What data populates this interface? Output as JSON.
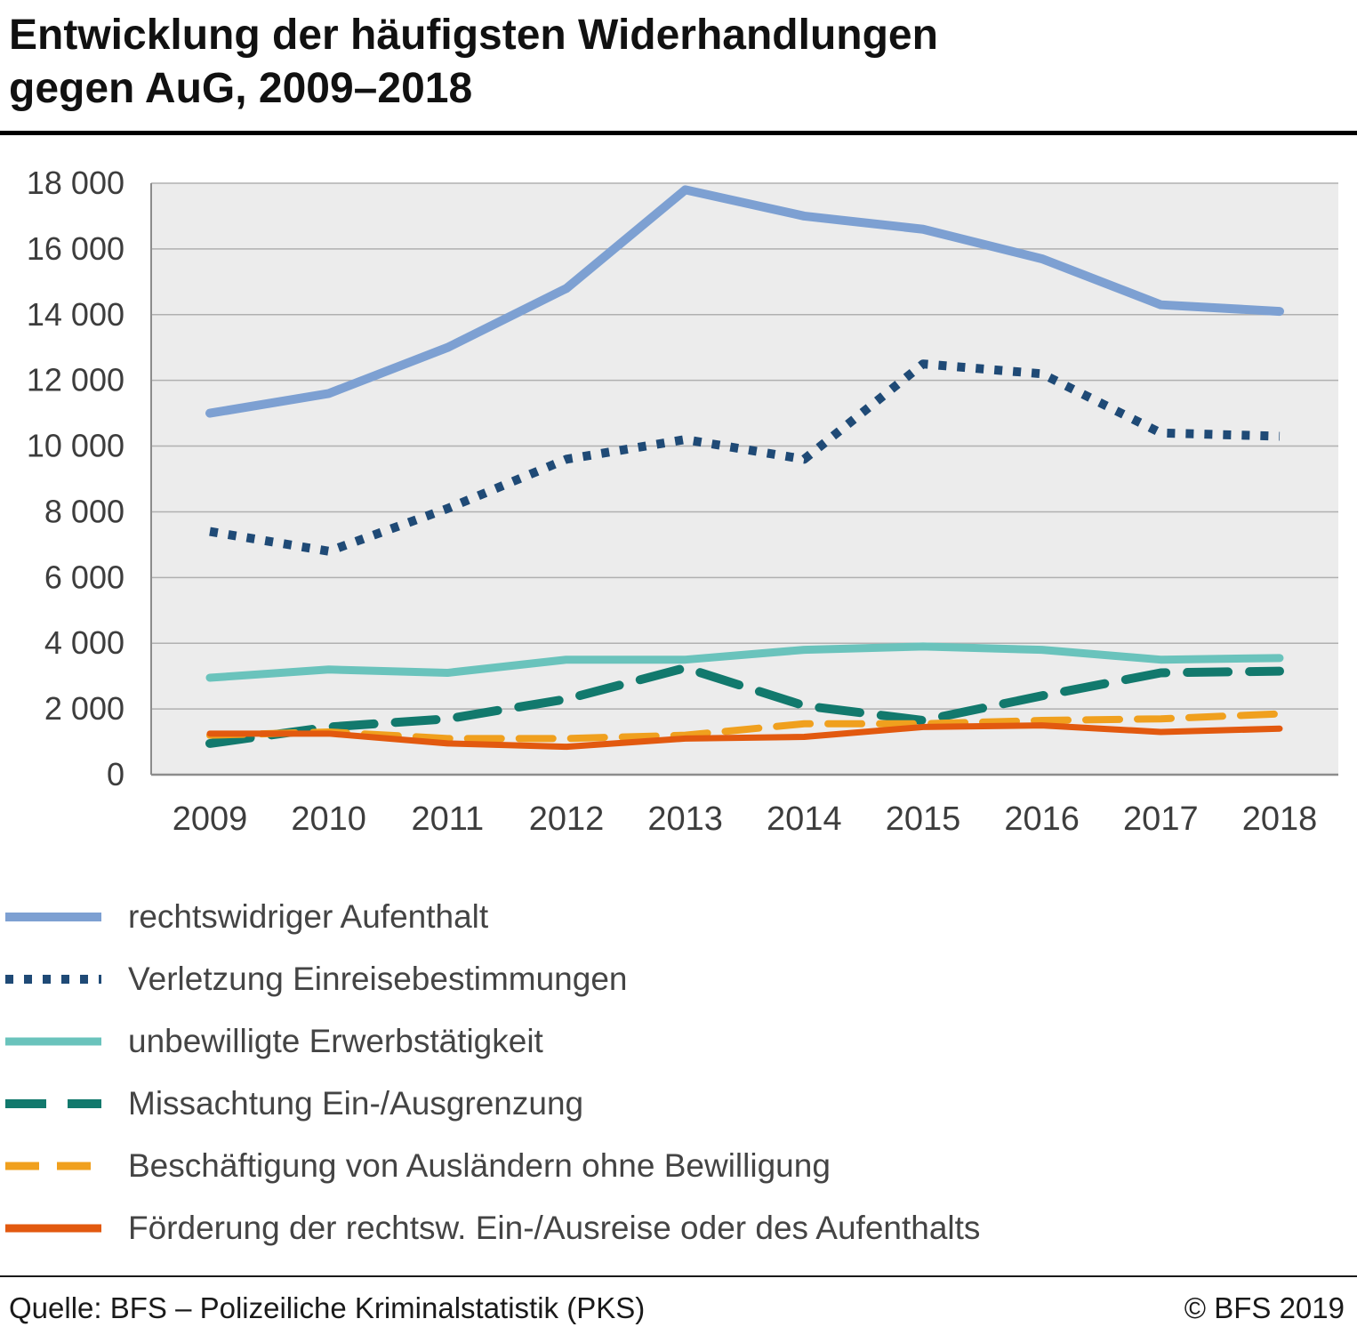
{
  "title": {
    "line1": "Entwicklung der häufigsten Widerhandlungen",
    "line2": "gegen AuG, 2009–2018"
  },
  "footer": {
    "source": "Quelle: BFS – Polizeiliche Kriminalstatistik (PKS)",
    "copyright": "© BFS 2019"
  },
  "colors": {
    "plot_background": "#ececec",
    "gridline": "#b0b0b0",
    "axis": "#8c8c8c",
    "axis_text": "#3d3d3d",
    "legend_text": "#444444"
  },
  "chart_data": {
    "type": "line",
    "title": "Entwicklung der häufigsten Widerhandlungen gegen AuG, 2009–2018",
    "xlabel": "",
    "ylabel": "",
    "categories": [
      "2009",
      "2010",
      "2011",
      "2012",
      "2013",
      "2014",
      "2015",
      "2016",
      "2017",
      "2018"
    ],
    "ylim": [
      0,
      18000
    ],
    "yticks": [
      0,
      2000,
      4000,
      6000,
      8000,
      10000,
      12000,
      14000,
      16000,
      18000
    ],
    "ytick_labels": [
      "0",
      "2 000",
      "4 000",
      "6 000",
      "8 000",
      "10 000",
      "12 000",
      "14 000",
      "16 000",
      "18 000"
    ],
    "grid": true,
    "legend_position": "bottom",
    "plot_bg": "#ececec",
    "series": [
      {
        "name": "rechtswidriger Aufenthalt",
        "color": "#7da0d2",
        "dash": "solid",
        "width": 10,
        "values": [
          11000,
          11600,
          13000,
          14800,
          17800,
          17000,
          16600,
          15700,
          14300,
          14100
        ]
      },
      {
        "name": "Verletzung Einreisebestimmungen",
        "color": "#1f4a76",
        "dash": "dotted",
        "width": 10,
        "values": [
          7400,
          6800,
          8100,
          9600,
          10200,
          9600,
          12500,
          12200,
          10400,
          10300
        ]
      },
      {
        "name": "unbewilligte Erwerbstätigkeit",
        "color": "#6ac3bc",
        "dash": "solid",
        "width": 9,
        "values": [
          2950,
          3200,
          3100,
          3500,
          3500,
          3800,
          3900,
          3800,
          3500,
          3550
        ]
      },
      {
        "name": "Missachtung Ein-/Ausgrenzung",
        "color": "#12796d",
        "dash": "longdash",
        "width": 10,
        "values": [
          950,
          1450,
          1700,
          2300,
          3250,
          2100,
          1650,
          2400,
          3100,
          3150
        ]
      },
      {
        "name": "Beschäftigung von Ausländern ohne Bewilligung",
        "color": "#f0a01e",
        "dash": "dashed",
        "width": 8,
        "values": [
          1200,
          1300,
          1100,
          1100,
          1200,
          1550,
          1550,
          1650,
          1700,
          1850
        ]
      },
      {
        "name": "Förderung der rechtsw. Ein-/Ausreise oder des Aufenthalts",
        "color": "#e2590f",
        "dash": "solid",
        "width": 7,
        "values": [
          1250,
          1250,
          950,
          850,
          1100,
          1150,
          1450,
          1500,
          1300,
          1400
        ]
      }
    ]
  }
}
